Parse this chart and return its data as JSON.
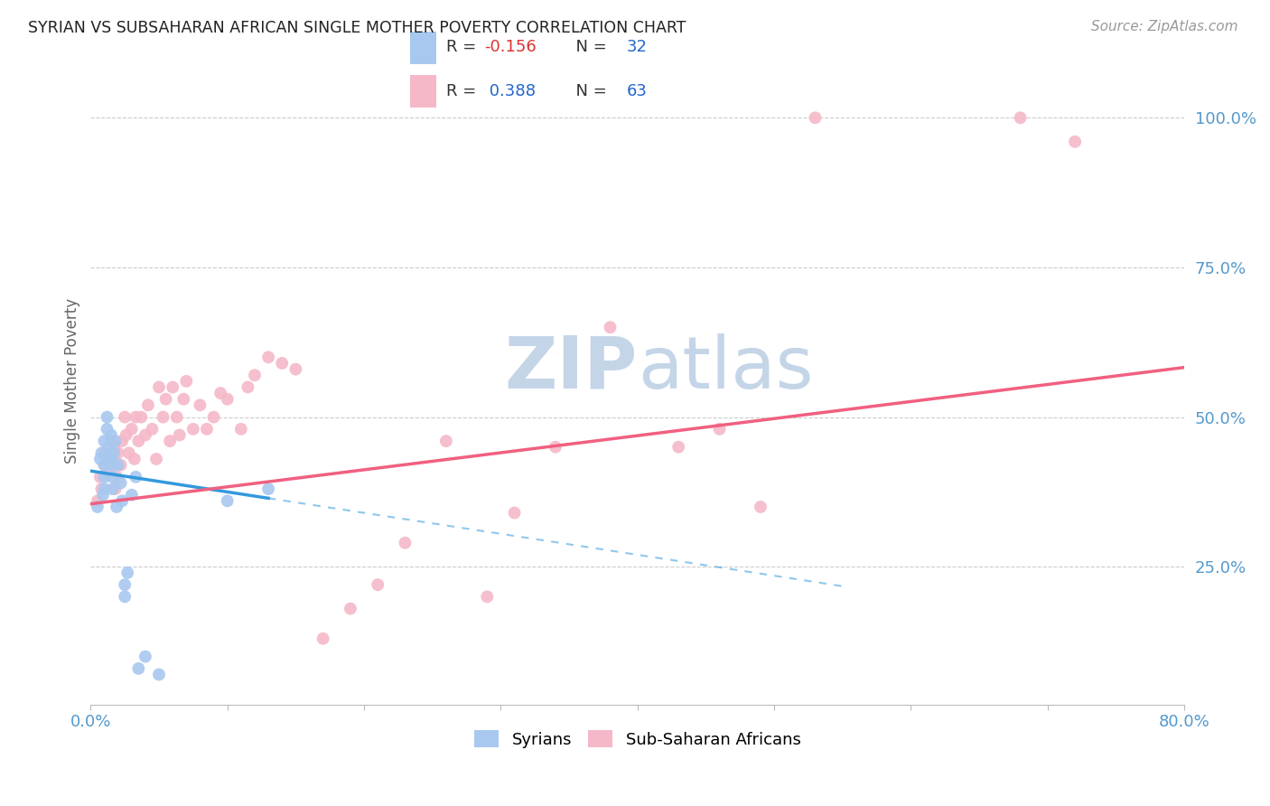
{
  "title": "SYRIAN VS SUBSAHARAN AFRICAN SINGLE MOTHER POVERTY CORRELATION CHART",
  "source": "Source: ZipAtlas.com",
  "ylabel": "Single Mother Poverty",
  "yticks_labels": [
    "25.0%",
    "50.0%",
    "75.0%",
    "100.0%"
  ],
  "ytick_vals": [
    0.25,
    0.5,
    0.75,
    1.0
  ],
  "xlim": [
    0.0,
    0.8
  ],
  "ylim": [
    0.02,
    1.1
  ],
  "syrian_color": "#A8C8F0",
  "subsaharan_color": "#F5B8C8",
  "syrian_line_color": "#3399DD",
  "subsaharan_line_color": "#F06080",
  "watermark_zip": "ZIP",
  "watermark_atlas": "atlas",
  "watermark_color_zip": "#C5D5E8",
  "watermark_color_atlas": "#C5D5E8",
  "background_color": "#FFFFFF",
  "tick_color": "#5599CC",
  "legend_r1": "R = ",
  "legend_v1": "-0.156",
  "legend_n1": "N = ",
  "legend_nv1": "32",
  "legend_r2": "R = ",
  "legend_v2": " 0.388",
  "legend_n2": "N = ",
  "legend_nv2": "63",
  "syrian_x": [
    0.005,
    0.007,
    0.008,
    0.009,
    0.01,
    0.01,
    0.01,
    0.01,
    0.012,
    0.012,
    0.013,
    0.014,
    0.015,
    0.015,
    0.016,
    0.016,
    0.017,
    0.018,
    0.019,
    0.02,
    0.022,
    0.023,
    0.025,
    0.025,
    0.027,
    0.03,
    0.033,
    0.035,
    0.04,
    0.05,
    0.1,
    0.13
  ],
  "syrian_y": [
    0.35,
    0.43,
    0.44,
    0.37,
    0.46,
    0.42,
    0.4,
    0.38,
    0.48,
    0.5,
    0.45,
    0.42,
    0.47,
    0.43,
    0.4,
    0.38,
    0.44,
    0.46,
    0.35,
    0.42,
    0.39,
    0.36,
    0.2,
    0.22,
    0.24,
    0.37,
    0.4,
    0.08,
    0.1,
    0.07,
    0.36,
    0.38
  ],
  "subsaharan_x": [
    0.005,
    0.007,
    0.008,
    0.01,
    0.01,
    0.012,
    0.013,
    0.015,
    0.016,
    0.017,
    0.018,
    0.019,
    0.02,
    0.022,
    0.023,
    0.025,
    0.026,
    0.028,
    0.03,
    0.032,
    0.033,
    0.035,
    0.037,
    0.04,
    0.042,
    0.045,
    0.048,
    0.05,
    0.053,
    0.055,
    0.058,
    0.06,
    0.063,
    0.065,
    0.068,
    0.07,
    0.075,
    0.08,
    0.085,
    0.09,
    0.095,
    0.1,
    0.11,
    0.115,
    0.12,
    0.13,
    0.14,
    0.15,
    0.17,
    0.19,
    0.21,
    0.23,
    0.26,
    0.29,
    0.31,
    0.34,
    0.38,
    0.43,
    0.46,
    0.49,
    0.53,
    0.68,
    0.72
  ],
  "subsaharan_y": [
    0.36,
    0.4,
    0.38,
    0.44,
    0.42,
    0.43,
    0.41,
    0.46,
    0.42,
    0.45,
    0.38,
    0.4,
    0.44,
    0.42,
    0.46,
    0.5,
    0.47,
    0.44,
    0.48,
    0.43,
    0.5,
    0.46,
    0.5,
    0.47,
    0.52,
    0.48,
    0.43,
    0.55,
    0.5,
    0.53,
    0.46,
    0.55,
    0.5,
    0.47,
    0.53,
    0.56,
    0.48,
    0.52,
    0.48,
    0.5,
    0.54,
    0.53,
    0.48,
    0.55,
    0.57,
    0.6,
    0.59,
    0.58,
    0.13,
    0.18,
    0.22,
    0.29,
    0.46,
    0.2,
    0.34,
    0.45,
    0.65,
    0.45,
    0.48,
    0.35,
    1.0,
    1.0,
    0.96
  ]
}
